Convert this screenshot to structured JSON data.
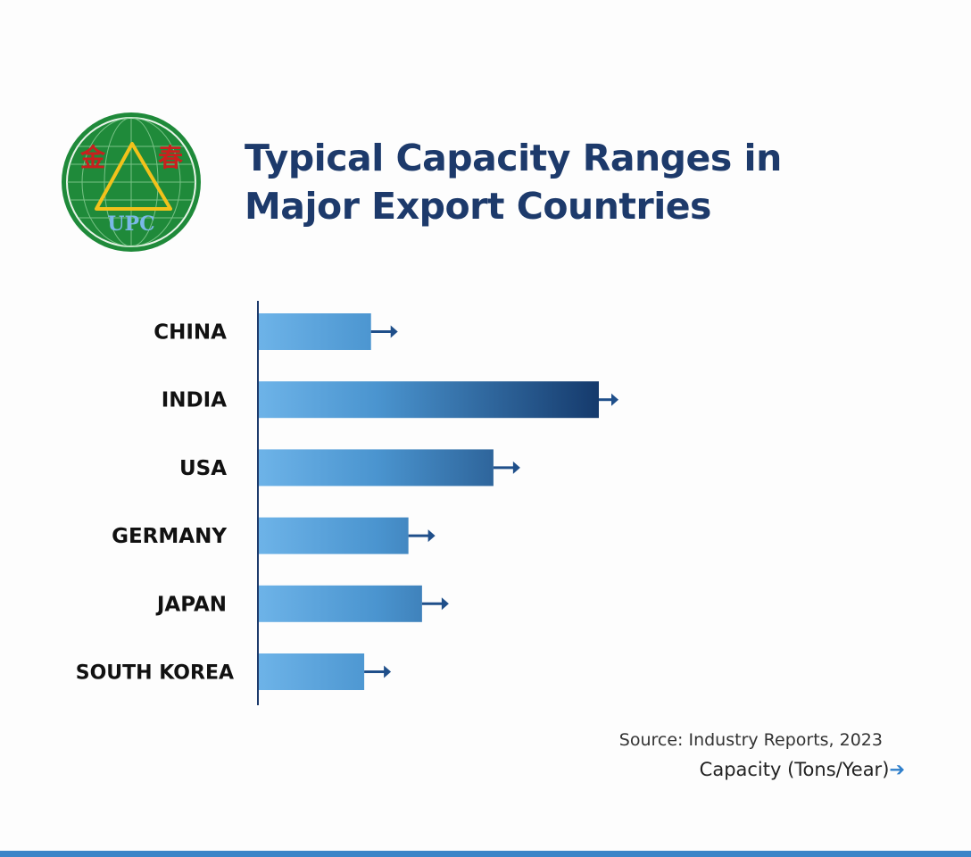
{
  "logo": {
    "text_cn": "金 春",
    "text_en": "UPC",
    "colors": {
      "green": "#1f8a3a",
      "gold": "#f2c21b",
      "red": "#c8201e",
      "blue": "#7ab8e8"
    }
  },
  "title_line1": "Typical Capacity Ranges in",
  "title_line2": "Major Export Countries",
  "source": "Source: Industry Reports, 2023",
  "unit_label": "Capacity (Tons/Year)",
  "unit_arrow": "➔",
  "chart_data": {
    "type": "bar",
    "orientation": "horizontal",
    "categories": [
      "CHINA",
      "INDIA",
      "USA",
      "GERMANY",
      "JAPAN",
      "SOUTH KOREA"
    ],
    "values": [
      0.33,
      1.0,
      0.69,
      0.44,
      0.48,
      0.31
    ],
    "value_note": "relative bar length (no numeric axis printed)",
    "xlabel": "Capacity (Tons/Year)",
    "grid": false,
    "colors": {
      "bar_start": "#6db3e8",
      "bar_end": "#153a6c",
      "arrow": "#1f4f8a",
      "axis": "#1d3a6b"
    }
  }
}
